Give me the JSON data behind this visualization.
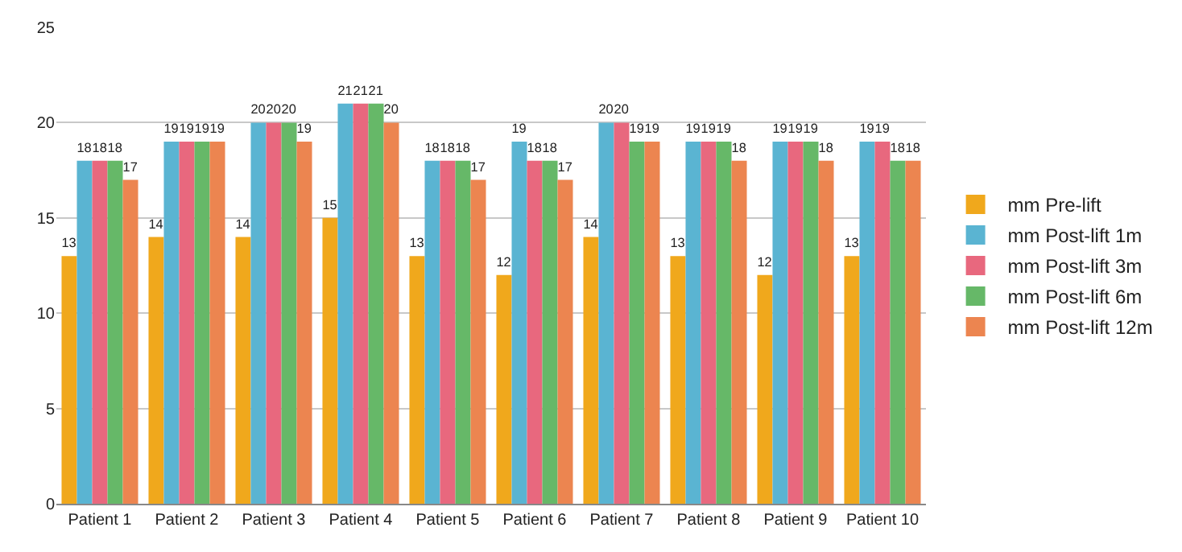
{
  "chart_data": {
    "type": "bar",
    "categories": [
      "Patient 1",
      "Patient 2",
      "Patient 3",
      "Patient 4",
      "Patient 5",
      "Patient 6",
      "Patient 7",
      "Patient 8",
      "Patient 9",
      "Patient 10"
    ],
    "series": [
      {
        "name": "mm Pre-lift",
        "color": "#f0a81c",
        "values": [
          13,
          14,
          14,
          15,
          13,
          12,
          14,
          13,
          12,
          13
        ]
      },
      {
        "name": "mm Post-lift 1m",
        "color": "#5ab4d2",
        "values": [
          18,
          19,
          20,
          21,
          18,
          19,
          20,
          19,
          19,
          19
        ]
      },
      {
        "name": "mm Post-lift 3m",
        "color": "#e8687e",
        "values": [
          18,
          19,
          20,
          21,
          18,
          18,
          20,
          19,
          19,
          19
        ]
      },
      {
        "name": "mm Post-lift 6m",
        "color": "#66b868",
        "values": [
          18,
          19,
          20,
          21,
          18,
          18,
          19,
          19,
          19,
          18
        ]
      },
      {
        "name": "mm Post-lift 12m",
        "color": "#ec8550",
        "values": [
          17,
          19,
          19,
          20,
          17,
          17,
          19,
          18,
          18,
          18
        ]
      }
    ],
    "ylim": [
      0,
      25
    ],
    "yticks": [
      0,
      5,
      10,
      15,
      20,
      25
    ],
    "grid": "y",
    "legend": "right",
    "data_labels": true
  }
}
